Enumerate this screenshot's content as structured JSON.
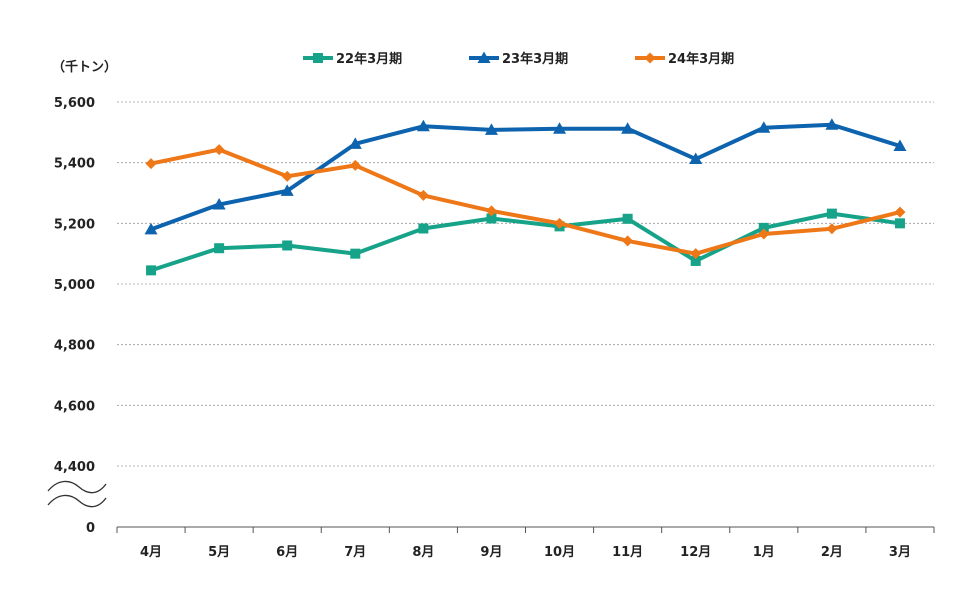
{
  "chart_data": {
    "type": "line",
    "unit_label": "（千トン）",
    "categories": [
      "4月",
      "5月",
      "6月",
      "7月",
      "8月",
      "9月",
      "10月",
      "11月",
      "12月",
      "1月",
      "2月",
      "3月"
    ],
    "y_axis": {
      "ticks": [
        {
          "value": 5600,
          "label": "5,600"
        },
        {
          "value": 5400,
          "label": "5,400"
        },
        {
          "value": 5200,
          "label": "5,200"
        },
        {
          "value": 5000,
          "label": "5,000"
        },
        {
          "value": 4800,
          "label": "4,800"
        },
        {
          "value": 4600,
          "label": "4,600"
        },
        {
          "value": 4400,
          "label": "4,400"
        },
        {
          "value": 0,
          "label": "0"
        }
      ],
      "ylim": [
        4400,
        5600
      ],
      "axis_break": true,
      "grid": true
    },
    "legend_position": "top",
    "series": [
      {
        "name": "22年3月期",
        "color": "#17a389",
        "marker": "square",
        "values": [
          5045,
          5118,
          5127,
          5100,
          5183,
          5216,
          5190,
          5215,
          5076,
          5185,
          5232,
          5200
        ]
      },
      {
        "name": "23年3月期",
        "color": "#0d63ad",
        "marker": "triangle",
        "values": [
          5180,
          5262,
          5307,
          5462,
          5520,
          5508,
          5512,
          5512,
          5412,
          5515,
          5525,
          5455
        ]
      },
      {
        "name": "24年3月期",
        "color": "#ee7718",
        "marker": "diamond",
        "values": [
          5397,
          5443,
          5355,
          5391,
          5292,
          5241,
          5200,
          5142,
          5100,
          5165,
          5182,
          5237
        ]
      }
    ]
  }
}
